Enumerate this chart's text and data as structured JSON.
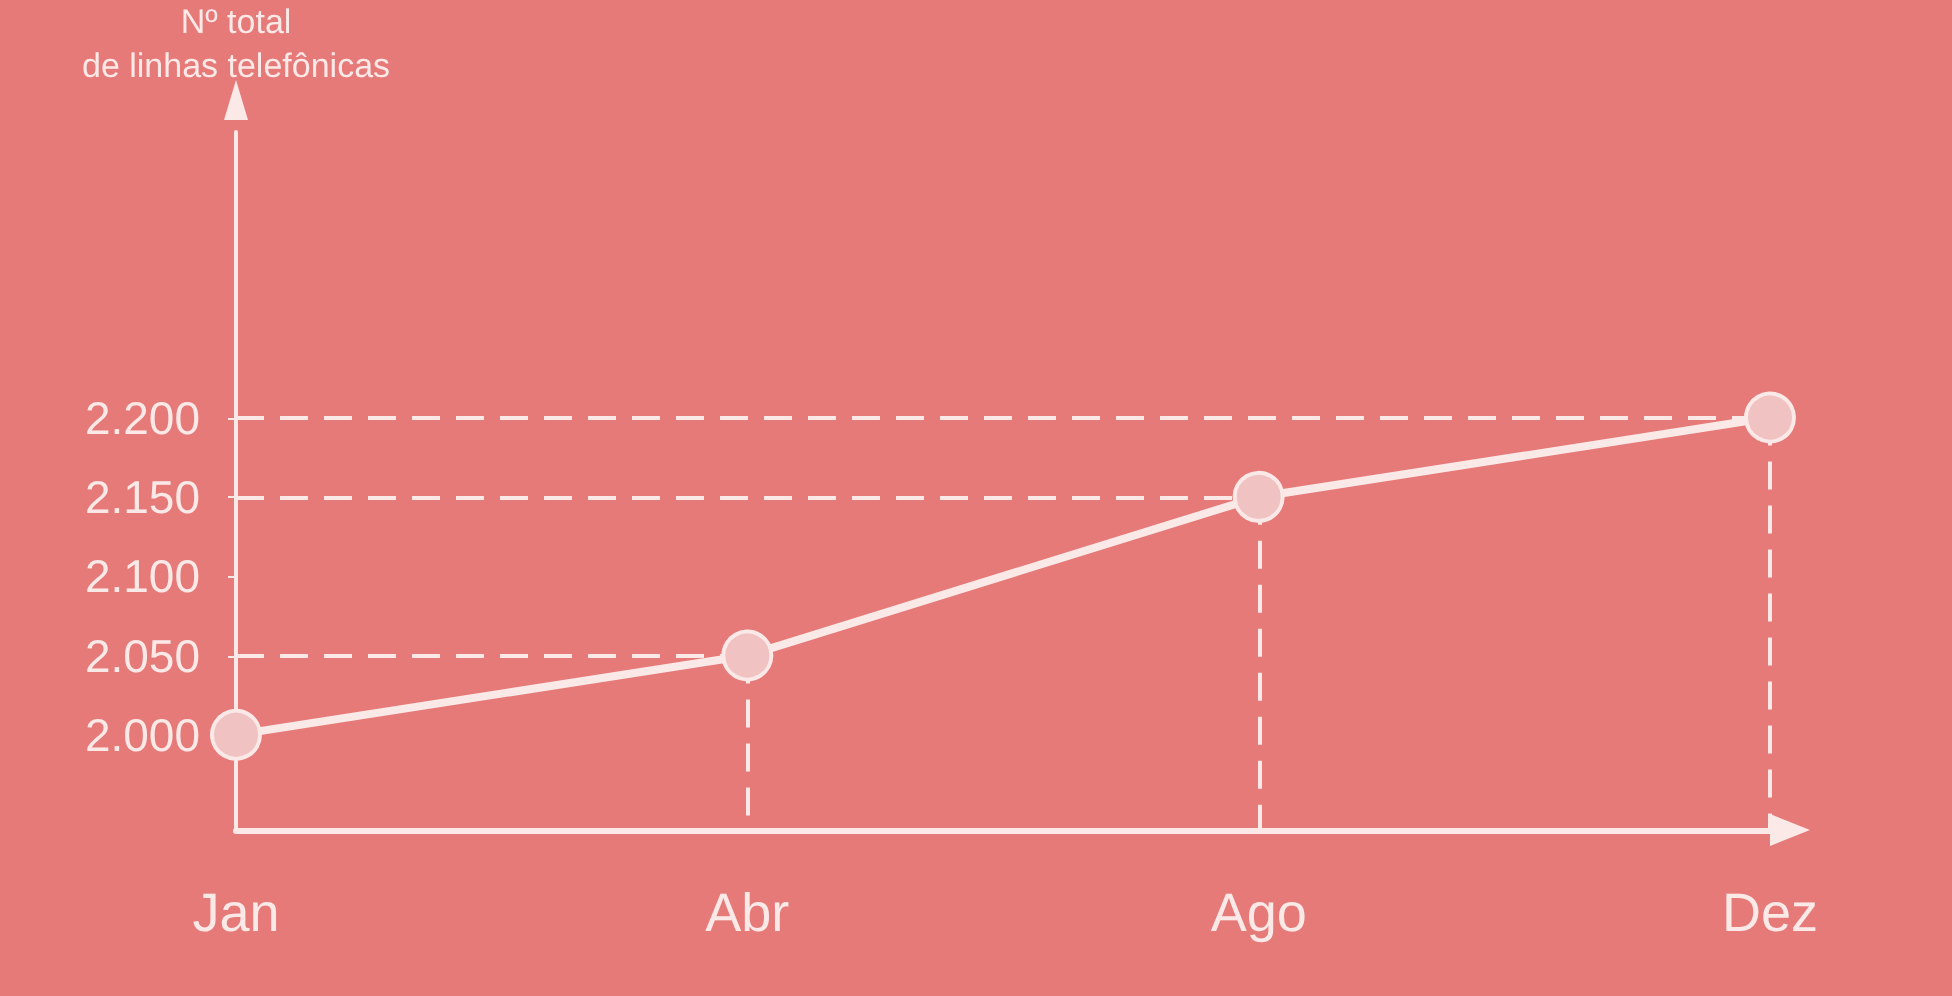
{
  "chart_data": {
    "type": "line",
    "ylabel": "Nº total\nde linhas telefônicas",
    "categories": [
      "Jan",
      "Abr",
      "Ago",
      "Dez"
    ],
    "series": [
      {
        "color": "#fbe9e8",
        "values": [
          2000,
          2050,
          2150,
          2200
        ]
      }
    ],
    "ylim": [
      1940,
      2380
    ],
    "yticks": [
      {
        "value": 2000,
        "label": "2.000"
      },
      {
        "value": 2050,
        "label": "2.050"
      },
      {
        "value": 2100,
        "label": "2.100"
      },
      {
        "value": 2150,
        "label": "2.150"
      },
      {
        "value": 2200,
        "label": "2.200"
      }
    ],
    "ref_lines": [
      {
        "axis": "y",
        "value": 2050,
        "line_style": "dashed"
      },
      {
        "axis": "y",
        "value": 2150,
        "line_style": "dashed"
      },
      {
        "axis": "y",
        "value": 2200,
        "line_style": "dashed"
      },
      {
        "axis": "x",
        "value": "Abr",
        "line_style": "dashed"
      },
      {
        "axis": "x",
        "value": "Ago",
        "line_style": "dashed"
      },
      {
        "axis": "x",
        "value": "Dez",
        "line_style": "dashed"
      }
    ],
    "grid": false,
    "marker": "circle",
    "line_style": "solid"
  }
}
